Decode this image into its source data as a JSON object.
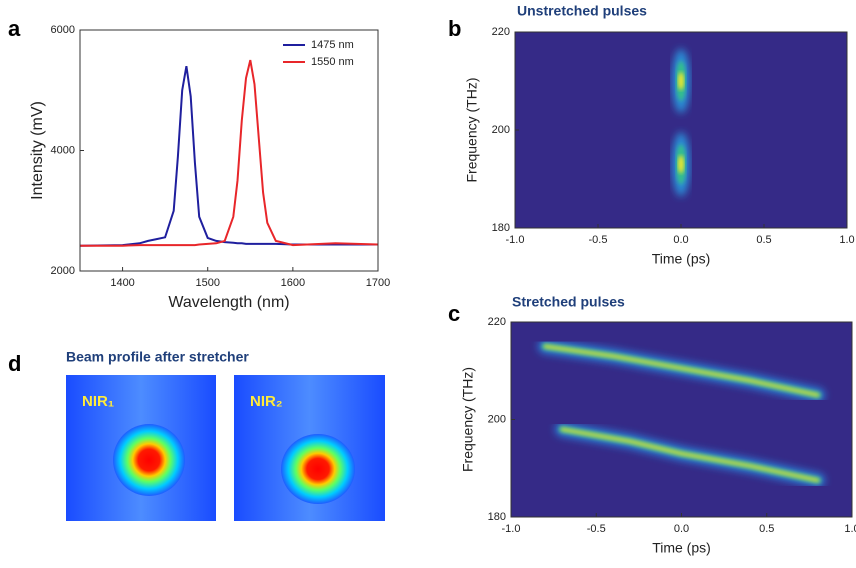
{
  "chart_data": [
    {
      "type": "line",
      "label": "a",
      "xlabel": "Wavelength (nm)",
      "ylabel": "Intensity (mV)",
      "x": [
        1350,
        1400,
        1420,
        1430,
        1440,
        1450,
        1460,
        1465,
        1470,
        1475,
        1480,
        1485,
        1490,
        1500,
        1510,
        1520,
        1530,
        1535,
        1540,
        1545,
        1550,
        1555,
        1560,
        1565,
        1570,
        1580,
        1600,
        1650,
        1700
      ],
      "series": [
        {
          "name": "1475 nm",
          "color": "#1f1f9e",
          "values": [
            2420,
            2430,
            2460,
            2500,
            2530,
            2560,
            3000,
            3900,
            5000,
            5400,
            4900,
            3800,
            2900,
            2550,
            2500,
            2480,
            2470,
            2460,
            2460,
            2450,
            2450,
            2450,
            2450,
            2450,
            2450,
            2450,
            2440,
            2440,
            2440
          ]
        },
        {
          "name": "1550 nm",
          "color": "#e8262a",
          "values": [
            2420,
            2420,
            2430,
            2430,
            2430,
            2430,
            2430,
            2430,
            2430,
            2430,
            2430,
            2430,
            2440,
            2450,
            2460,
            2500,
            2900,
            3500,
            4500,
            5200,
            5500,
            5100,
            4200,
            3300,
            2800,
            2500,
            2430,
            2460,
            2440
          ]
        }
      ],
      "xlim": [
        1350,
        1700
      ],
      "xticks": [
        1400,
        1500,
        1600,
        1700
      ],
      "ylim": [
        2000,
        6000
      ],
      "yticks": [
        2000,
        4000,
        6000
      ],
      "legend": "upper right"
    },
    {
      "type": "spectrogram",
      "label": "b",
      "title": "Unstretched pulses",
      "xlabel": "Time (ps)",
      "ylabel": "Frequency (THz)",
      "background": "#352a87",
      "series": [
        {
          "x": [
            0
          ],
          "y": [
            210
          ]
        },
        {
          "x": [
            0
          ],
          "y": [
            193
          ]
        }
      ],
      "xlim": [
        -1,
        1
      ],
      "xticks": [
        {
          "value": -1,
          "label": "-1.0"
        },
        -0.5,
        {
          "value": 0,
          "label": "0.0"
        },
        0.5,
        {
          "value": 1,
          "label": "1.0"
        }
      ],
      "ylim": [
        180,
        220
      ],
      "yticks": [
        180,
        200,
        220
      ]
    },
    {
      "type": "spectrogram",
      "label": "c",
      "title": "Stretched pulses",
      "xlabel": "Time (ps)",
      "ylabel": "Frequency (THz)",
      "background": "#352a87",
      "series": [
        {
          "x": [
            -0.8,
            -0.4,
            0,
            0.4,
            0.8
          ],
          "y": [
            215,
            213,
            210.5,
            208,
            205
          ]
        },
        {
          "x": [
            -0.7,
            -0.3,
            0,
            0.4,
            0.8
          ],
          "y": [
            198,
            195.5,
            193,
            190.5,
            187.5
          ]
        }
      ],
      "xlim": [
        -1,
        1
      ],
      "xticks": [
        {
          "value": -1,
          "label": "-1.0"
        },
        -0.5,
        {
          "value": 0,
          "label": "0.0"
        },
        0.5,
        {
          "value": 1,
          "label": "1.0"
        }
      ],
      "ylim": [
        180,
        220
      ],
      "yticks": [
        180,
        200,
        220
      ]
    }
  ],
  "panel_d": {
    "label": "d",
    "title": "Beam profile after stretcher",
    "images": [
      {
        "label": "NIR₁"
      },
      {
        "label": "NIR₂"
      }
    ]
  }
}
